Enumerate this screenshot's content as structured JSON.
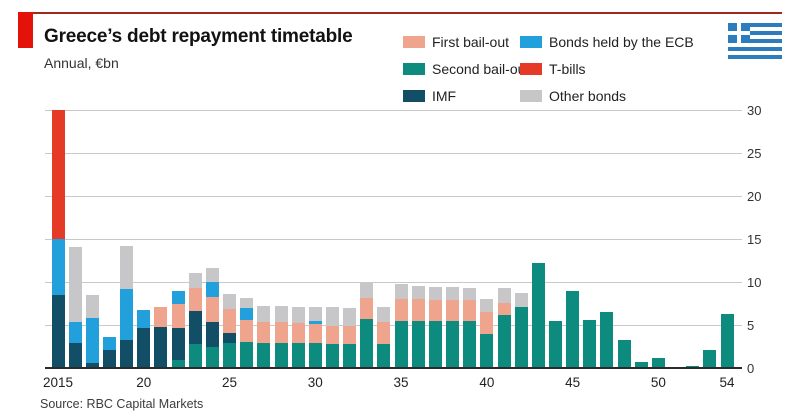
{
  "header": {
    "title": "Greece’s debt repayment timetable",
    "subtitle": "Annual, €bn"
  },
  "source": "Source: RBC Capital Markets",
  "brand": {
    "tag_color": "#e3120b",
    "rule_color": "#9e2a1e"
  },
  "flag": {
    "name": "greece-flag",
    "blue": "#2c7cbe",
    "white": "#ffffff"
  },
  "legend": {
    "items": [
      {
        "id": "first-bailout",
        "label": "First bail-out",
        "color": "#efa48e"
      },
      {
        "id": "second-bailout",
        "label": "Second bail-out",
        "color": "#0e8b7f"
      },
      {
        "id": "imf",
        "label": "IMF",
        "color": "#124f66"
      },
      {
        "id": "ecb-bonds",
        "label": "Bonds held by the ECB",
        "color": "#21a0db"
      },
      {
        "id": "t-bills",
        "label": "T-bills",
        "color": "#e43a26"
      },
      {
        "id": "other-bonds",
        "label": "Other bonds",
        "color": "#c7c7c9"
      }
    ]
  },
  "chart_data": {
    "type": "bar",
    "stacked": true,
    "title": "Greece’s debt repayment timetable",
    "subtitle": "Annual, €bn",
    "xlabel": "",
    "ylabel": "€bn",
    "ylim": [
      0,
      30
    ],
    "grid": true,
    "y_ticks": [
      0,
      5,
      10,
      15,
      20,
      25,
      30
    ],
    "x": [
      2015,
      2016,
      2017,
      2018,
      2019,
      2020,
      2021,
      2022,
      2023,
      2024,
      2025,
      2026,
      2027,
      2028,
      2029,
      2030,
      2031,
      2032,
      2033,
      2034,
      2035,
      2036,
      2037,
      2038,
      2039,
      2040,
      2041,
      2042,
      2043,
      2044,
      2045,
      2046,
      2047,
      2048,
      2049,
      2050,
      2051,
      2052,
      2053,
      2054
    ],
    "x_tick_labels": [
      {
        "label": "2015",
        "index": 0
      },
      {
        "label": "20",
        "index": 5
      },
      {
        "label": "25",
        "index": 10
      },
      {
        "label": "30",
        "index": 15
      },
      {
        "label": "35",
        "index": 20
      },
      {
        "label": "40",
        "index": 25
      },
      {
        "label": "45",
        "index": 30
      },
      {
        "label": "50",
        "index": 35
      },
      {
        "label": "54",
        "index": 39
      }
    ],
    "series": [
      {
        "name": "Second bail-out",
        "color": "#0e8b7f",
        "values": [
          0,
          0,
          0,
          0,
          0,
          0,
          0,
          0.9,
          2.8,
          2.4,
          2.9,
          3.0,
          2.9,
          2.9,
          2.9,
          2.9,
          2.8,
          2.8,
          5.7,
          2.8,
          5.5,
          5.5,
          5.5,
          5.5,
          5.5,
          4.0,
          6.2,
          7.1,
          12.2,
          5.5,
          8.9,
          5.6,
          6.5,
          3.3,
          0.7,
          1.2,
          0.15,
          0.2,
          2.1,
          6.3
        ]
      },
      {
        "name": "IMF",
        "color": "#124f66",
        "values": [
          8.5,
          2.9,
          0.6,
          2.1,
          3.3,
          4.6,
          4.8,
          3.8,
          3.8,
          2.9,
          1.2,
          0,
          0,
          0,
          0,
          0,
          0,
          0,
          0,
          0,
          0,
          0,
          0,
          0,
          0,
          0,
          0,
          0,
          0,
          0,
          0,
          0,
          0,
          0,
          0,
          0,
          0,
          0,
          0,
          0
        ]
      },
      {
        "name": "First bail-out",
        "color": "#efa48e",
        "values": [
          0,
          0,
          0,
          0,
          0,
          0,
          2.3,
          2.8,
          2.7,
          3.0,
          2.8,
          2.6,
          2.5,
          2.4,
          2.3,
          2.2,
          2.1,
          2.1,
          2.4,
          2.5,
          2.5,
          2.5,
          2.4,
          2.4,
          2.4,
          2.5,
          1.4,
          0,
          0,
          0,
          0,
          0,
          0,
          0,
          0,
          0,
          0,
          0,
          0,
          0
        ]
      },
      {
        "name": "Bonds held by the ECB",
        "color": "#21a0db",
        "values": [
          6.5,
          2.4,
          5.2,
          1.5,
          5.9,
          2.2,
          0,
          1.5,
          0,
          1.7,
          0,
          1.4,
          0,
          0,
          0,
          0.4,
          0,
          0,
          0,
          0,
          0,
          0,
          0,
          0,
          0,
          0,
          0,
          0,
          0,
          0,
          0,
          0,
          0,
          0,
          0,
          0,
          0,
          0,
          0,
          0
        ]
      },
      {
        "name": "T-bills",
        "color": "#e43a26",
        "values": [
          15.0,
          0,
          0,
          0,
          0,
          0,
          0,
          0,
          0,
          0,
          0,
          0,
          0,
          0,
          0,
          0,
          0,
          0,
          0,
          0,
          0,
          0,
          0,
          0,
          0,
          0,
          0,
          0,
          0,
          0,
          0,
          0,
          0,
          0,
          0,
          0,
          0,
          0,
          0,
          0
        ]
      },
      {
        "name": "Other bonds",
        "color": "#c7c7c9",
        "values": [
          0,
          8.8,
          2.7,
          0,
          5.0,
          0,
          0,
          0,
          1.7,
          1.6,
          1.7,
          1.1,
          1.8,
          1.9,
          1.9,
          1.6,
          2.2,
          2.1,
          1.8,
          1.8,
          1.8,
          1.5,
          1.5,
          1.5,
          1.4,
          1.5,
          1.7,
          1.6,
          0,
          0,
          0,
          0,
          0,
          0,
          0,
          0,
          0,
          0,
          0,
          0
        ]
      }
    ],
    "legend_position": "top-right"
  }
}
